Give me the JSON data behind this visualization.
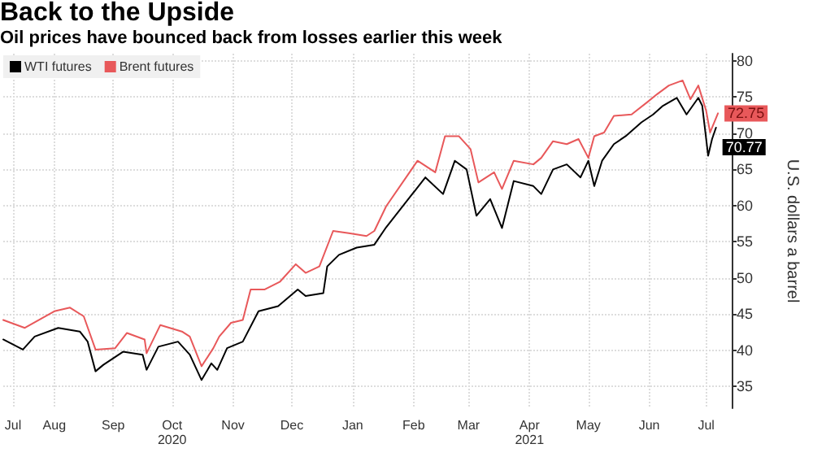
{
  "chart_data": {
    "type": "line",
    "title": "Back to the Upside",
    "subtitle": "Oil prices have bounced back from losses earlier this week",
    "ylabel": "U.S. dollars a barrel",
    "xlim": [
      "2020-07-21",
      "2021-07-27"
    ],
    "ylim": [
      32,
      81
    ],
    "yticks": [
      35,
      40,
      45,
      50,
      55,
      60,
      65,
      70,
      75,
      80
    ],
    "xticks": [
      {
        "value": "2020-07-26",
        "label": "Jul"
      },
      {
        "value": "2020-08-16",
        "label": "Aug"
      },
      {
        "value": "2020-09-15",
        "label": "Sep"
      },
      {
        "value": "2020-10-15",
        "label": "Oct\n2020"
      },
      {
        "value": "2020-11-15",
        "label": "Nov"
      },
      {
        "value": "2020-12-15",
        "label": "Dec"
      },
      {
        "value": "2021-01-15",
        "label": "Jan"
      },
      {
        "value": "2021-02-15",
        "label": "Feb"
      },
      {
        "value": "2021-03-15",
        "label": "Mar"
      },
      {
        "value": "2021-04-15",
        "label": "Apr\n2021"
      },
      {
        "value": "2021-05-15",
        "label": "May"
      },
      {
        "value": "2021-06-15",
        "label": "Jun"
      },
      {
        "value": "2021-07-14",
        "label": "Jul"
      }
    ],
    "grid": true,
    "legend": "top left",
    "marker": "none",
    "line_style": "solid",
    "series": [
      {
        "name": "WTI futures",
        "color": "#000000",
        "x": [
          "2020-07-21",
          "2020-07-31",
          "2020-08-06",
          "2020-08-18",
          "2020-08-29",
          "2020-09-02",
          "2020-09-06",
          "2020-09-10",
          "2020-09-20",
          "2020-09-30",
          "2020-10-02",
          "2020-10-08",
          "2020-10-18",
          "2020-10-24",
          "2020-10-30",
          "2020-11-04",
          "2020-11-07",
          "2020-11-12",
          "2020-11-20",
          "2020-11-28",
          "2020-12-08",
          "2020-12-18",
          "2020-12-22",
          "2020-12-31",
          "2021-01-02",
          "2021-01-08",
          "2021-01-17",
          "2021-01-26",
          "2021-02-01",
          "2021-02-21",
          "2021-03-02",
          "2021-03-08",
          "2021-03-14",
          "2021-03-19",
          "2021-03-26",
          "2021-04-01",
          "2021-04-07",
          "2021-04-17",
          "2021-04-21",
          "2021-04-27",
          "2021-05-04",
          "2021-05-11",
          "2021-05-15",
          "2021-05-18",
          "2021-05-22",
          "2021-05-28",
          "2021-06-03",
          "2021-06-11",
          "2021-06-17",
          "2021-06-22",
          "2021-06-29",
          "2021-07-04",
          "2021-07-10",
          "2021-07-12",
          "2021-07-15",
          "2021-07-17",
          "2021-07-19"
        ],
        "values": [
          41.5,
          40.1,
          41.9,
          43.1,
          42.6,
          41.2,
          37.1,
          38.0,
          39.8,
          39.4,
          37.3,
          40.5,
          41.2,
          39.4,
          35.9,
          38.2,
          37.3,
          40.3,
          41.2,
          45.4,
          46.1,
          48.4,
          47.5,
          47.9,
          51.6,
          53.2,
          54.2,
          54.6,
          57.0,
          63.9,
          61.6,
          66.2,
          65.0,
          58.6,
          60.9,
          56.9,
          63.4,
          62.7,
          61.6,
          65.0,
          65.7,
          63.9,
          66.2,
          62.7,
          66.2,
          68.5,
          69.6,
          71.5,
          72.6,
          73.8,
          74.9,
          72.6,
          74.9,
          73.8,
          66.9,
          69.2,
          70.77
        ],
        "value_labels": [
          null,
          null,
          null,
          null,
          null,
          null,
          null,
          null,
          null,
          null,
          null,
          null,
          null,
          null,
          null,
          null,
          null,
          null,
          null,
          null,
          null,
          null,
          null,
          null,
          null,
          null,
          null,
          null,
          null,
          null,
          null,
          null,
          null,
          null,
          null,
          null,
          null,
          null,
          null,
          null,
          null,
          null,
          null,
          null,
          null,
          null,
          null,
          null,
          null,
          null,
          null,
          null,
          null,
          null,
          null,
          null,
          "70.77"
        ]
      },
      {
        "name": "Brent futures",
        "color": "#e8585a",
        "x": [
          "2020-07-21",
          "2020-08-01",
          "2020-08-16",
          "2020-08-24",
          "2020-08-31",
          "2020-09-06",
          "2020-09-16",
          "2020-09-22",
          "2020-10-01",
          "2020-10-02",
          "2020-10-09",
          "2020-10-20",
          "2020-10-24",
          "2020-10-30",
          "2020-11-05",
          "2020-11-08",
          "2020-11-14",
          "2020-11-20",
          "2020-11-24",
          "2020-12-01",
          "2020-12-09",
          "2020-12-17",
          "2020-12-22",
          "2020-12-29",
          "2021-01-05",
          "2021-01-13",
          "2021-01-22",
          "2021-01-26",
          "2021-02-01",
          "2021-02-17",
          "2021-02-26",
          "2021-03-03",
          "2021-03-10",
          "2021-03-16",
          "2021-03-20",
          "2021-03-28",
          "2021-04-01",
          "2021-04-07",
          "2021-04-17",
          "2021-04-21",
          "2021-04-27",
          "2021-05-04",
          "2021-05-10",
          "2021-05-15",
          "2021-05-18",
          "2021-05-23",
          "2021-05-28",
          "2021-06-06",
          "2021-06-14",
          "2021-06-19",
          "2021-06-25",
          "2021-07-02",
          "2021-07-06",
          "2021-07-10",
          "2021-07-14",
          "2021-07-16",
          "2021-07-20"
        ],
        "values": [
          44.2,
          43.1,
          45.4,
          45.9,
          44.7,
          40.1,
          40.3,
          42.4,
          41.5,
          39.6,
          43.5,
          42.6,
          41.9,
          37.8,
          40.3,
          41.9,
          43.8,
          44.2,
          48.4,
          48.4,
          49.5,
          51.9,
          50.7,
          51.6,
          56.5,
          56.2,
          55.8,
          56.5,
          59.9,
          66.2,
          64.6,
          69.6,
          69.6,
          67.8,
          63.2,
          64.6,
          62.3,
          66.2,
          65.7,
          66.6,
          68.9,
          68.5,
          69.2,
          66.6,
          69.6,
          70.1,
          72.4,
          72.6,
          74.3,
          75.4,
          76.6,
          77.3,
          74.7,
          76.6,
          73.1,
          70.1,
          72.75
        ],
        "value_labels": [
          null,
          null,
          null,
          null,
          null,
          null,
          null,
          null,
          null,
          null,
          null,
          null,
          null,
          null,
          null,
          null,
          null,
          null,
          null,
          null,
          null,
          null,
          null,
          null,
          null,
          null,
          null,
          null,
          null,
          null,
          null,
          null,
          null,
          null,
          null,
          null,
          null,
          null,
          null,
          null,
          null,
          null,
          null,
          null,
          null,
          null,
          null,
          null,
          null,
          null,
          null,
          null,
          null,
          null,
          null,
          null,
          "72.75"
        ]
      }
    ]
  }
}
